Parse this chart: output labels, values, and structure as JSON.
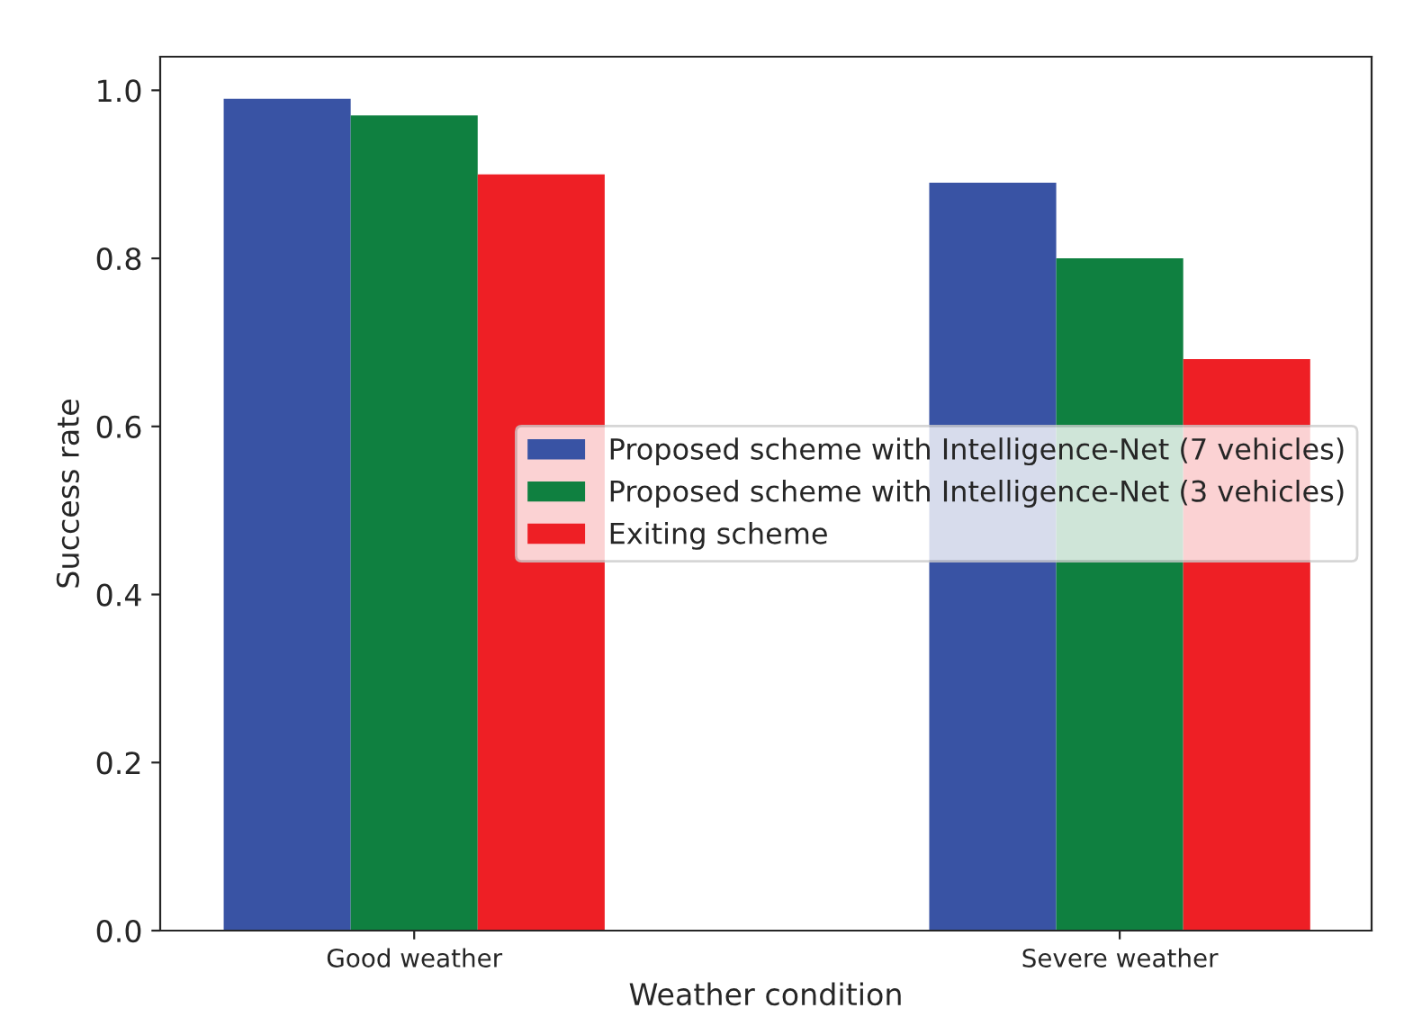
{
  "chart_data": {
    "type": "bar",
    "xlabel": "Weather condition",
    "ylabel": "Success rate",
    "categories": [
      "Good weather",
      "Severe weather"
    ],
    "series": [
      {
        "name": "Proposed scheme with Intelligence-Net (7 vehicles)",
        "color": "#3953a4",
        "values": [
          0.99,
          0.89
        ]
      },
      {
        "name": "Proposed scheme with Intelligence-Net (3 vehicles)",
        "color": "#0f8040",
        "values": [
          0.97,
          0.8
        ]
      },
      {
        "name": "Exiting scheme",
        "color": "#ee1f25",
        "values": [
          0.9,
          0.68
        ]
      }
    ],
    "ylim": [
      0,
      1.04
    ],
    "yticks": [
      {
        "value": 0,
        "label": "0.0"
      },
      0.2,
      0.4,
      0.6,
      0.8,
      {
        "value": 1,
        "label": "1.0"
      }
    ],
    "grid": false,
    "legend": "center right"
  }
}
